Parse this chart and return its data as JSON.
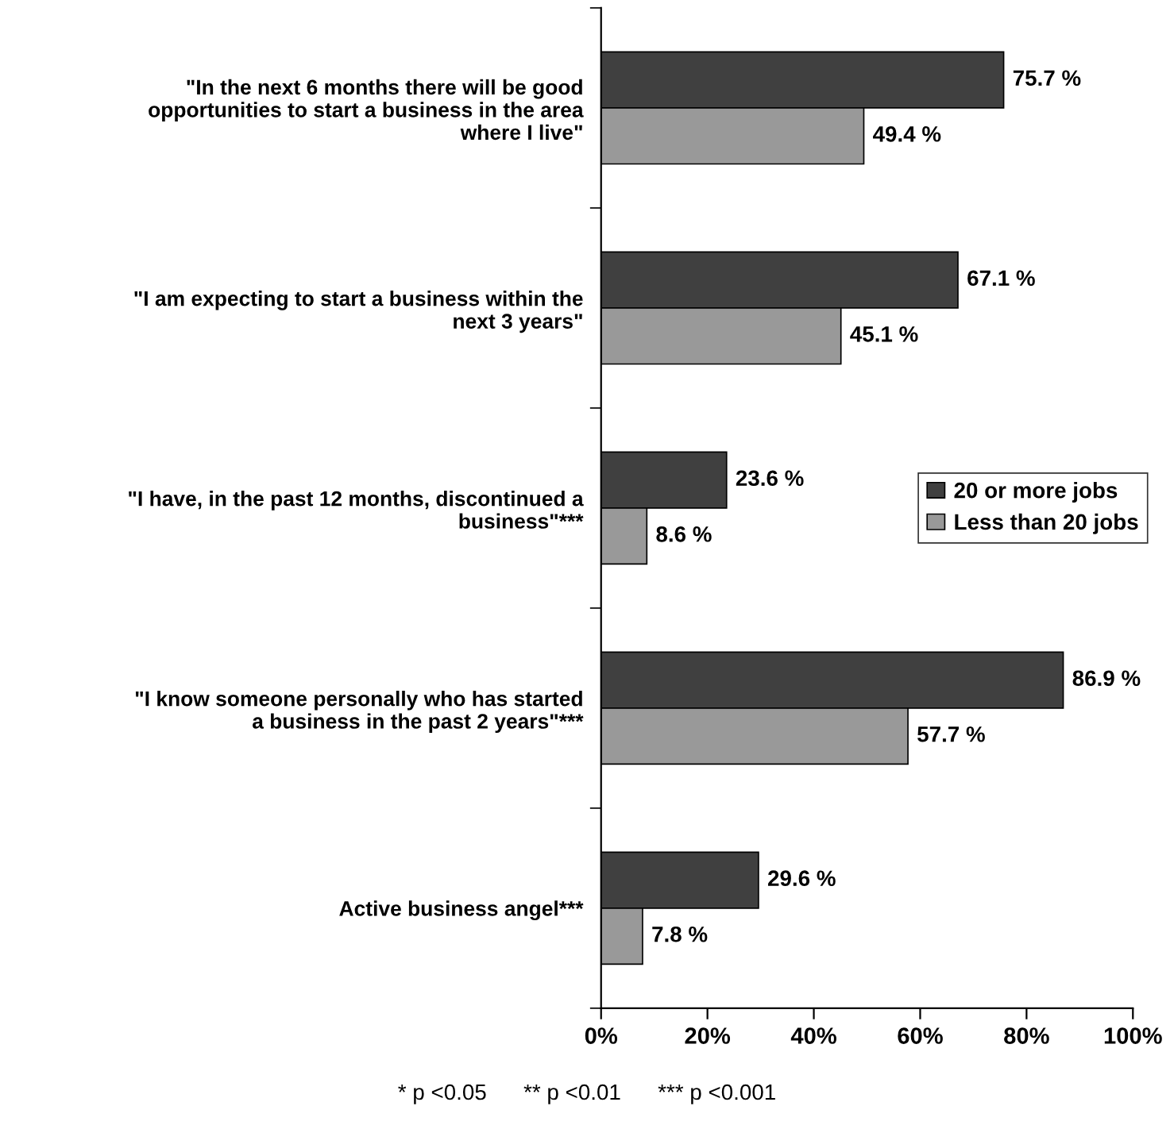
{
  "chart_data": {
    "type": "bar",
    "orientation": "horizontal",
    "categories": [
      "\"In the next 6 months there will be good\nopportunities to start a business in the area\nwhere I live\"",
      "\"I am expecting to start a business within the\nnext 3 years\"",
      "\"I have, in the past 12 months, discontinued a\nbusiness\"***",
      "\"I know someone personally who has started\na business in the past 2 years\"***",
      "Active business angel***"
    ],
    "series": [
      {
        "name": "20 or more jobs",
        "color": "#404040",
        "values": [
          75.7,
          67.1,
          23.6,
          86.9,
          29.6
        ],
        "value_labels": [
          "75.7 %",
          "67.1 %",
          "23.6 %",
          "86.9 %",
          "29.6 %"
        ]
      },
      {
        "name": "Less than 20 jobs",
        "color": "#999999",
        "values": [
          49.4,
          45.1,
          8.6,
          57.7,
          7.8
        ],
        "value_labels": [
          "49.4 %",
          "45.1 %",
          "8.6 %",
          "57.7 %",
          "7.8 %"
        ]
      }
    ],
    "xlim": [
      0,
      100
    ],
    "xticks": [
      {
        "value": 0,
        "label": "0%"
      },
      {
        "value": 20,
        "label": "20%"
      },
      {
        "value": 40,
        "label": "40%"
      },
      {
        "value": 60,
        "label": "60%"
      },
      {
        "value": 80,
        "label": "80%"
      },
      {
        "value": 100,
        "label": "100%"
      }
    ],
    "legend": "right",
    "grid": false,
    "annotations": [
      "* p <0.05      ** p <0.01      *** p <0.001"
    ]
  }
}
